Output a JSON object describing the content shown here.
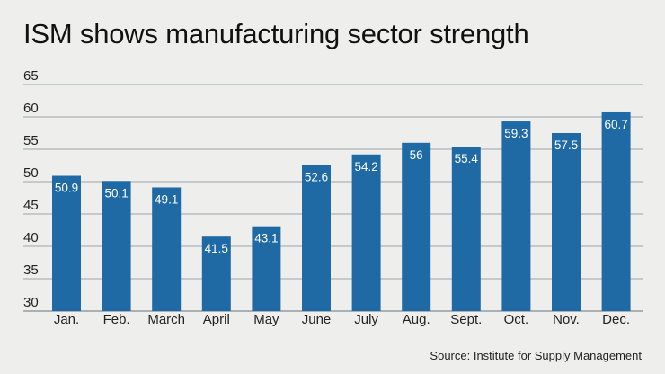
{
  "title": "ISM shows manufacturing sector strength",
  "source": "Source: Institute for Supply Management",
  "colors": {
    "bar": "#1f6aa5",
    "grid": "#7f8c94",
    "background": "#eeefec",
    "bar_label": "#ffffff"
  },
  "chart_data": {
    "type": "bar",
    "categories": [
      "Jan.",
      "Feb.",
      "March",
      "April",
      "May",
      "June",
      "July",
      "Aug.",
      "Sept.",
      "Oct.",
      "Nov.",
      "Dec."
    ],
    "values": [
      50.9,
      50.1,
      49.1,
      41.5,
      43.1,
      52.6,
      54.2,
      56,
      55.4,
      59.3,
      57.5,
      60.7
    ],
    "value_labels": [
      "50.9",
      "50.1",
      "49.1",
      "41.5",
      "43.1",
      "52.6",
      "54.2",
      "56",
      "55.4",
      "59.3",
      "57.5",
      "60.7"
    ],
    "ylim": [
      30,
      65
    ],
    "yticks": [
      30,
      35,
      40,
      45,
      50,
      55,
      60,
      65
    ],
    "grid": true,
    "xlabel": "",
    "ylabel": ""
  }
}
